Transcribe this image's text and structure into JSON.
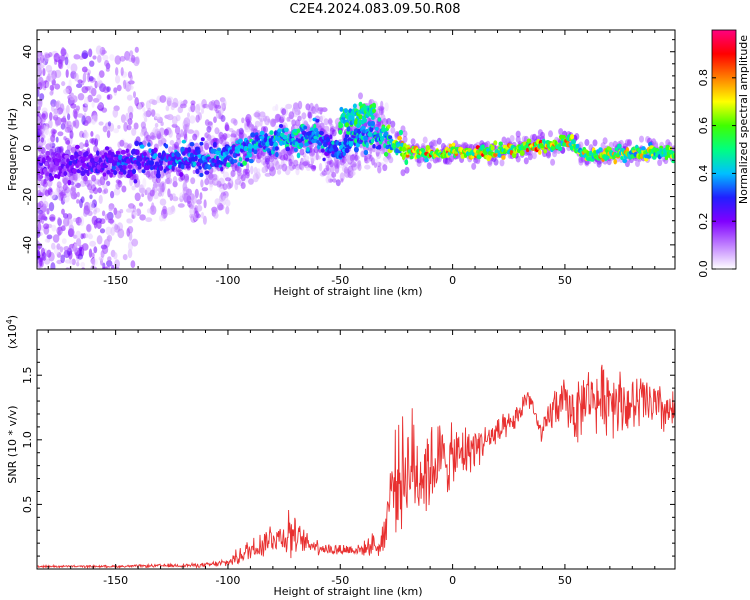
{
  "title": "C2E4.2024.083.09.50.R08",
  "chart_data": [
    {
      "type": "heatmap",
      "title": "C2E4.2024.083.09.50.R08",
      "xlabel": "Height of straight line (km)",
      "ylabel": "Frequency (Hz)",
      "xlim": [
        -185,
        99
      ],
      "ylim": [
        -50,
        49
      ],
      "x_ticks": [
        -150,
        -100,
        -50,
        0,
        50
      ],
      "y_ticks": [
        -40,
        -20,
        0,
        20,
        40
      ],
      "colorbar": {
        "label": "Normalized spectral amplitude",
        "range": [
          0,
          1
        ],
        "ticks": [
          0.0,
          0.2,
          0.4,
          0.6,
          0.8
        ],
        "colors": [
          "#ffffff",
          "#c080ff",
          "#8000ff",
          "#2020ff",
          "#00c0ff",
          "#00ff80",
          "#40ff00",
          "#ffff00",
          "#ff8000",
          "#ff0000",
          "#ff0080"
        ]
      },
      "ridge": {
        "x": [
          -185,
          -170,
          -150,
          -140,
          -120,
          -110,
          -100,
          -90,
          -80,
          -70,
          -60,
          -55,
          -50,
          -45,
          -40,
          -35,
          -30,
          -25,
          -20,
          -15,
          -10,
          -5,
          0,
          10,
          20,
          30,
          35,
          40,
          45,
          50,
          52,
          55,
          60,
          65,
          70,
          80,
          90,
          99
        ],
        "y": [
          -8,
          -7,
          -6,
          -5,
          -4,
          -5,
          -3,
          0,
          3,
          4,
          5,
          0,
          -1,
          3,
          5,
          6,
          4,
          2,
          -1,
          -2,
          -2,
          -2,
          -1,
          -2,
          -1,
          0,
          1,
          1,
          0,
          3,
          4,
          0,
          -3,
          -3,
          -2,
          -2,
          -1,
          -2
        ],
        "max_amplitude": [
          0.25,
          0.3,
          0.35,
          0.4,
          0.45,
          0.45,
          0.5,
          0.55,
          0.55,
          0.6,
          0.5,
          0.45,
          0.5,
          0.55,
          0.55,
          0.6,
          0.65,
          0.75,
          0.85,
          0.9,
          0.95,
          0.9,
          0.95,
          0.95,
          0.9,
          0.85,
          0.9,
          0.9,
          0.85,
          0.9,
          0.8,
          0.8,
          0.8,
          0.85,
          0.8,
          0.8,
          0.75,
          0.75
        ]
      },
      "upper_branch": {
        "x": [
          -50,
          -45,
          -40,
          -35
        ],
        "y": [
          11,
          13,
          14,
          16
        ]
      }
    },
    {
      "type": "line",
      "xlabel": "Height of straight line (km)",
      "ylabel": "SNR (10 * v/v)",
      "scale_label": "(x10",
      "scale_exp": "4",
      "xlim": [
        -185,
        99
      ],
      "ylim": [
        0,
        1.85
      ],
      "x_ticks": [
        -150,
        -100,
        -50,
        0,
        50
      ],
      "y_ticks": [
        0.5,
        1.0,
        1.5
      ],
      "y_tick_labels": [
        "0.5",
        "1.0",
        "1.5"
      ],
      "color": "#e83030",
      "envelope": {
        "x": [
          -185,
          -150,
          -110,
          -100,
          -95,
          -90,
          -85,
          -80,
          -75,
          -72,
          -70,
          -65,
          -60,
          -55,
          -50,
          -45,
          -40,
          -35,
          -33,
          -30,
          -28,
          -25,
          -22,
          -20,
          -15,
          -10,
          -5,
          0,
          5,
          10,
          15,
          20,
          25,
          30,
          33,
          35,
          38,
          40,
          45,
          50,
          55,
          60,
          65,
          70,
          75,
          80,
          85,
          90,
          99
        ],
        "center": [
          0.02,
          0.02,
          0.03,
          0.05,
          0.1,
          0.15,
          0.2,
          0.25,
          0.25,
          0.3,
          0.25,
          0.2,
          0.18,
          0.15,
          0.15,
          0.15,
          0.15,
          0.2,
          0.15,
          0.3,
          0.6,
          0.7,
          0.75,
          0.8,
          0.75,
          0.8,
          0.85,
          0.85,
          0.9,
          0.95,
          1.0,
          1.05,
          1.1,
          1.2,
          1.35,
          1.3,
          1.1,
          1.05,
          1.25,
          1.3,
          1.2,
          1.35,
          1.3,
          1.35,
          1.3,
          1.25,
          1.3,
          1.25,
          1.2
        ],
        "amplitude": [
          0.01,
          0.01,
          0.02,
          0.04,
          0.08,
          0.12,
          0.15,
          0.15,
          0.15,
          0.3,
          0.15,
          0.1,
          0.08,
          0.06,
          0.06,
          0.06,
          0.06,
          0.1,
          0.08,
          0.2,
          0.35,
          0.45,
          0.5,
          0.55,
          0.5,
          0.45,
          0.35,
          0.3,
          0.25,
          0.2,
          0.15,
          0.15,
          0.12,
          0.1,
          0.12,
          0.12,
          0.08,
          0.1,
          0.2,
          0.2,
          0.3,
          0.25,
          0.3,
          0.35,
          0.3,
          0.25,
          0.3,
          0.25,
          0.2
        ]
      }
    }
  ]
}
